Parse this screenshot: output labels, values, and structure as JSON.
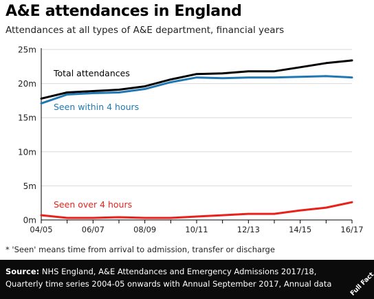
{
  "header": {
    "title": "A&E attendances in England",
    "subtitle": "Attendances at all types of A&E department, financial years"
  },
  "footnote": "* 'Seen' means time from arrival to admission, transfer or discharge",
  "source": {
    "label": "Source:",
    "text": "NHS England, A&E Attendances and Emergency Admissions 2017/18, Quarterly time series 2004-05 onwards with Annual September 2017, Annual data"
  },
  "logo": {
    "text": "Full Fact"
  },
  "colors": {
    "total": "#000000",
    "within4": "#1f77b4",
    "over4": "#e8221b",
    "grid": "#d9d9d9",
    "footer_bg": "#0b0b0b"
  },
  "chart_data": {
    "type": "line",
    "x": [
      "04/05",
      "05/06",
      "06/07",
      "07/08",
      "08/09",
      "09/10",
      "10/11",
      "11/12",
      "12/13",
      "13/14",
      "14/15",
      "15/16",
      "16/17"
    ],
    "x_tick_labels": [
      "04/05",
      "06/07",
      "08/09",
      "10/11",
      "12/13",
      "14/15",
      "16/17"
    ],
    "y_tick_labels": [
      "0m",
      "5m",
      "10m",
      "15m",
      "20m",
      "25m"
    ],
    "ylim": [
      0,
      25
    ],
    "y_unit": "m",
    "grid": true,
    "series": [
      {
        "name": "Total attendances",
        "color": "#000000",
        "values": [
          17.8,
          18.7,
          18.9,
          19.1,
          19.6,
          20.6,
          21.4,
          21.5,
          21.8,
          21.8,
          22.4,
          23.0,
          23.4
        ]
      },
      {
        "name": "Seen within 4 hours",
        "color": "#1f77b4",
        "values": [
          17.1,
          18.4,
          18.6,
          18.7,
          19.2,
          20.2,
          20.9,
          20.8,
          20.9,
          20.9,
          21.0,
          21.1,
          20.9
        ]
      },
      {
        "name": "Seen over 4 hours",
        "color": "#e8221b",
        "values": [
          0.7,
          0.3,
          0.3,
          0.4,
          0.3,
          0.3,
          0.5,
          0.7,
          0.9,
          0.9,
          1.4,
          1.8,
          2.6
        ]
      }
    ]
  }
}
